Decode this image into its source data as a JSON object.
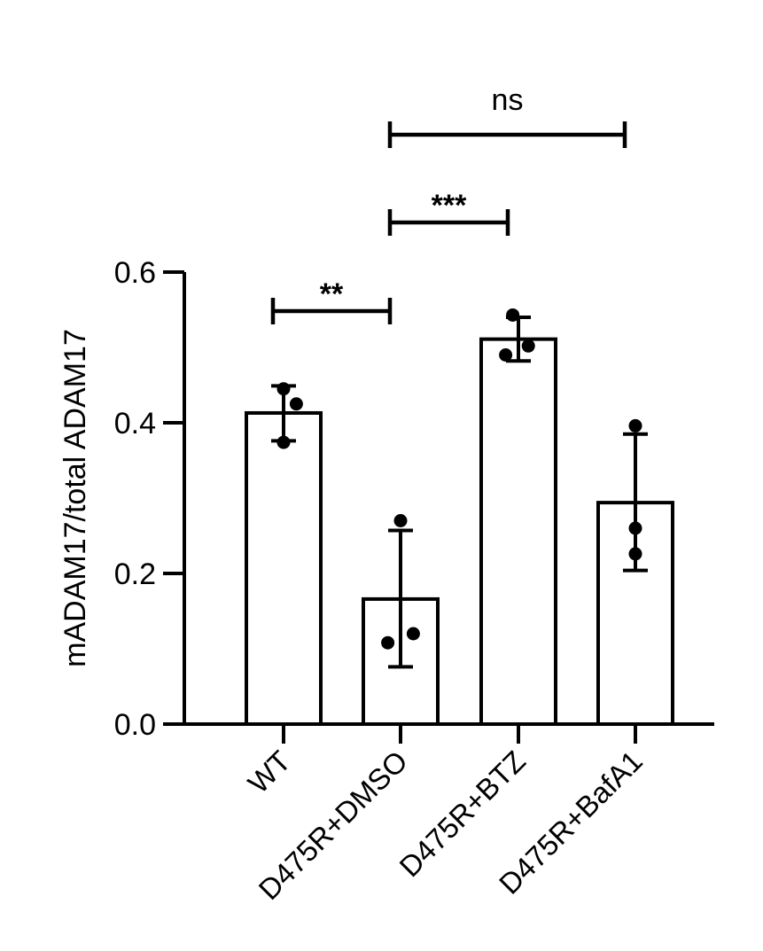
{
  "chart_data": {
    "type": "bar",
    "title": "",
    "xlabel": "",
    "ylabel": "mADAM17/total ADAM17",
    "ylim": [
      0,
      0.6
    ],
    "yticks": [
      0.0,
      0.2,
      0.4,
      0.6
    ],
    "ytick_labels": [
      "0.0",
      "0.2",
      "0.4",
      "0.6"
    ],
    "categories": [
      "WT",
      "D475R+DMSO",
      "D475R+BTZ",
      "D475R+BafA1"
    ],
    "values": [
      0.413,
      0.166,
      0.511,
      0.294
    ],
    "errors": [
      {
        "low": 0.376,
        "high": 0.449
      },
      {
        "low": 0.076,
        "high": 0.257
      },
      {
        "low": 0.482,
        "high": 0.54
      },
      {
        "low": 0.204,
        "high": 0.385
      }
    ],
    "points": [
      [
        0.445,
        0.425,
        0.374
      ],
      [
        0.27,
        0.12,
        0.108
      ],
      [
        0.543,
        0.502,
        0.49
      ],
      [
        0.396,
        0.26,
        0.226
      ]
    ],
    "point_offsets": [
      [
        0.0,
        0.9,
        0.0
      ],
      [
        0.0,
        0.9,
        -0.9
      ],
      [
        -0.4,
        0.7,
        -0.9
      ],
      [
        0.0,
        0.0,
        0.0
      ]
    ],
    "significance": [
      {
        "from": 0,
        "to": 1,
        "label": "**"
      },
      {
        "from": 1,
        "to": 2,
        "label": "***"
      },
      {
        "from": 1,
        "to": 3,
        "label": "ns"
      }
    ],
    "legend": "none",
    "grid": false
  }
}
